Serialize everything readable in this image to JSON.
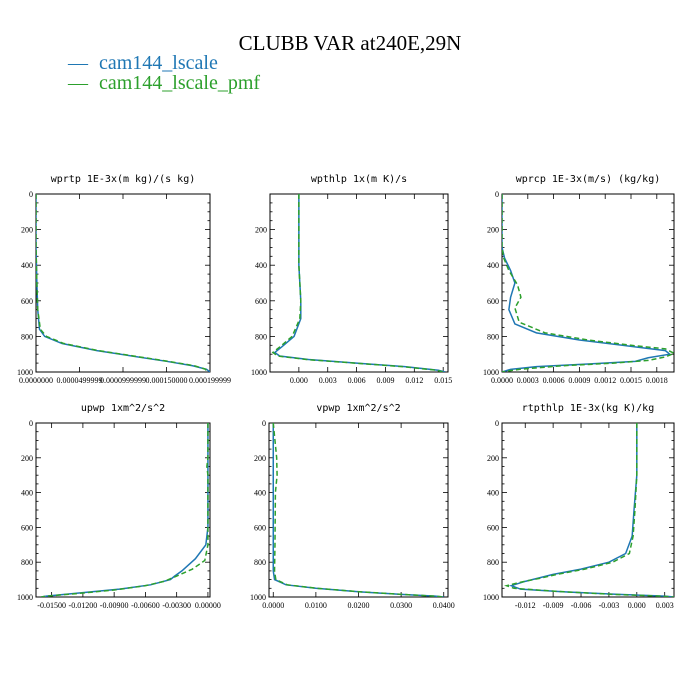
{
  "figure_title": "CLUBB VAR at240E,29N",
  "colors": {
    "cam144_lscale": "#1f77b4",
    "cam144_lscale_pmf": "#2ca02c"
  },
  "legend": [
    {
      "symbol": "—",
      "label": "cam144_lscale",
      "color": "#1f77b4"
    },
    {
      "symbol": "—",
      "label": "cam144_lscale_pmf",
      "color": "#2ca02c"
    }
  ],
  "chart_data": [
    {
      "type": "line",
      "title": "wprtp  1E-3x(m kg)/(s kg)",
      "xlim": [
        0,
        0.0002
      ],
      "ylim": [
        1000,
        0
      ],
      "xticks": [
        0,
        5e-05,
        0.0001,
        0.00015,
        0.0002
      ],
      "xtick_labels": [
        "0.0000000",
        "0.0000499999",
        "0.0000999999",
        "0.000150000",
        "0.000199999"
      ],
      "yticks": [
        0,
        200,
        400,
        600,
        800,
        1000
      ],
      "ytick_labels": [
        "0",
        "200",
        "400",
        "600",
        "800",
        "1000"
      ],
      "series": [
        {
          "name": "cam144_lscale",
          "dash": false,
          "points": [
            [
              0,
              0
            ],
            [
              0,
              300
            ],
            [
              1e-06,
              500
            ],
            [
              2e-06,
              650
            ],
            [
              4e-06,
              760
            ],
            [
              1e-05,
              800
            ],
            [
              3e-05,
              840
            ],
            [
              7e-05,
              880
            ],
            [
              0.00011,
              910
            ],
            [
              0.00015,
              940
            ],
            [
              0.00018,
              965
            ],
            [
              0.000196,
              985
            ],
            [
              0.0002,
              1000
            ]
          ]
        },
        {
          "name": "cam144_lscale_pmf",
          "dash": true,
          "points": [
            [
              0,
              0
            ],
            [
              0,
              300
            ],
            [
              1e-06,
              500
            ],
            [
              2e-06,
              650
            ],
            [
              5e-06,
              760
            ],
            [
              1.2e-05,
              800
            ],
            [
              3.2e-05,
              840
            ],
            [
              7.2e-05,
              880
            ],
            [
              0.000112,
              910
            ],
            [
              0.000152,
              940
            ],
            [
              0.000182,
              965
            ],
            [
              0.000194,
              983
            ],
            [
              0.000198,
              1000
            ]
          ]
        }
      ]
    },
    {
      "type": "line",
      "title": "wpthlp  1x(m K)/s",
      "xlim": [
        -0.003,
        0.0155
      ],
      "ylim": [
        1000,
        0
      ],
      "xticks": [
        0,
        0.003,
        0.006,
        0.009,
        0.012,
        0.015
      ],
      "xtick_labels": [
        "0.000",
        "0.003",
        "0.006",
        "0.009",
        "0.012",
        "0.015"
      ],
      "yticks": [
        200,
        400,
        600,
        800,
        1000
      ],
      "ytick_labels": [
        "200",
        "400",
        "600",
        "800",
        "1000"
      ],
      "series": [
        {
          "name": "cam144_lscale",
          "dash": false,
          "points": [
            [
              0,
              0
            ],
            [
              0,
              200
            ],
            [
              0,
              400
            ],
            [
              0.0001,
              500
            ],
            [
              0.0002,
              600
            ],
            [
              0.0002,
              700
            ],
            [
              -0.0005,
              800
            ],
            [
              -0.0018,
              860
            ],
            [
              -0.0025,
              890
            ],
            [
              -0.002,
              910
            ],
            [
              0.001,
              930
            ],
            [
              0.006,
              950
            ],
            [
              0.011,
              970
            ],
            [
              0.0145,
              990
            ],
            [
              0.0152,
              1000
            ]
          ]
        },
        {
          "name": "cam144_lscale_pmf",
          "dash": true,
          "points": [
            [
              0,
              0
            ],
            [
              0,
              200
            ],
            [
              0,
              400
            ],
            [
              0.0001,
              500
            ],
            [
              0.0002,
              600
            ],
            [
              0.0001,
              700
            ],
            [
              -0.0007,
              800
            ],
            [
              -0.002,
              860
            ],
            [
              -0.0027,
              890
            ],
            [
              -0.0022,
              910
            ],
            [
              0.0008,
              930
            ],
            [
              0.0058,
              950
            ],
            [
              0.0108,
              970
            ],
            [
              0.0143,
              990
            ],
            [
              0.015,
              1000
            ]
          ]
        }
      ]
    },
    {
      "type": "line",
      "title": "wprcp  1E-3x(m/s) (kg/kg)",
      "xlim": [
        0,
        0.002
      ],
      "ylim": [
        1000,
        0
      ],
      "xticks": [
        0,
        0.0003,
        0.0006,
        0.0009,
        0.0012,
        0.0015,
        0.0018
      ],
      "xtick_labels": [
        "0.0000",
        "0.0003",
        "0.0006",
        "0.0009",
        "0.0012",
        "0.0015",
        "0.0018"
      ],
      "yticks": [
        0,
        200,
        400,
        600,
        800,
        1000
      ],
      "ytick_labels": [
        "0",
        "200",
        "400",
        "600",
        "800",
        "1000"
      ],
      "series": [
        {
          "name": "cam144_lscale",
          "dash": false,
          "points": [
            [
              0,
              0
            ],
            [
              0,
              200
            ],
            [
              0,
              300
            ],
            [
              3e-05,
              360
            ],
            [
              0.0001,
              430
            ],
            [
              0.00015,
              500
            ],
            [
              0.0001,
              580
            ],
            [
              8e-05,
              650
            ],
            [
              0.00015,
              730
            ],
            [
              0.0004,
              780
            ],
            [
              0.0009,
              820
            ],
            [
              0.0014,
              850
            ],
            [
              0.0019,
              880
            ],
            [
              0.00195,
              900
            ],
            [
              0.0017,
              920
            ],
            [
              0.00155,
              940
            ],
            [
              0.001,
              955
            ],
            [
              0.0004,
              970
            ],
            [
              0.0001,
              985
            ],
            [
              0,
              1000
            ]
          ]
        },
        {
          "name": "cam144_lscale_pmf",
          "dash": true,
          "points": [
            [
              0,
              0
            ],
            [
              0,
              200
            ],
            [
              0,
              300
            ],
            [
              2e-05,
              360
            ],
            [
              8e-05,
              430
            ],
            [
              0.00018,
              510
            ],
            [
              0.00022,
              580
            ],
            [
              0.00015,
              640
            ],
            [
              0.0002,
              720
            ],
            [
              0.0005,
              780
            ],
            [
              0.001,
              820
            ],
            [
              0.0015,
              850
            ],
            [
              0.0019,
              870
            ],
            [
              0.002,
              895
            ],
            [
              0.0019,
              915
            ],
            [
              0.0017,
              935
            ],
            [
              0.0013,
              950
            ],
            [
              0.0007,
              965
            ],
            [
              0.0002,
              985
            ],
            [
              0,
              1000
            ]
          ]
        }
      ]
    },
    {
      "type": "line",
      "title": "upwp  1xm^2/s^2",
      "xlim": [
        -0.0165,
        0.0002
      ],
      "ylim": [
        1000,
        0
      ],
      "xticks": [
        -0.015,
        -0.012,
        -0.009,
        -0.006,
        -0.003,
        0
      ],
      "xtick_labels": [
        "-0.01500",
        "-0.01200",
        "-0.00900",
        "-0.00600",
        "-0.00300",
        "0.00000"
      ],
      "yticks": [
        0,
        200,
        400,
        600,
        800,
        1000
      ],
      "ytick_labels": [
        "0",
        "200",
        "400",
        "600",
        "800",
        "1000"
      ],
      "series": [
        {
          "name": "cam144_lscale",
          "dash": false,
          "points": [
            [
              0,
              0
            ],
            [
              0,
              200
            ],
            [
              0,
              400
            ],
            [
              0,
              600
            ],
            [
              -0.0002,
              700
            ],
            [
              -0.0012,
              780
            ],
            [
              -0.0025,
              850
            ],
            [
              -0.0032,
              880
            ],
            [
              -0.0036,
              900
            ],
            [
              -0.0055,
              930
            ],
            [
              -0.0085,
              955
            ],
            [
              -0.012,
              975
            ],
            [
              -0.0155,
              995
            ],
            [
              -0.016,
              1000
            ]
          ]
        },
        {
          "name": "cam144_lscale_pmf",
          "dash": true,
          "points": [
            [
              0,
              0
            ],
            [
              0,
              200
            ],
            [
              -0.0001,
              250
            ],
            [
              0,
              300
            ],
            [
              0,
              600
            ],
            [
              0,
              700
            ],
            [
              -0.0003,
              790
            ],
            [
              -0.0015,
              840
            ],
            [
              -0.003,
              880
            ],
            [
              -0.0042,
              910
            ],
            [
              -0.006,
              935
            ],
            [
              -0.009,
              960
            ],
            [
              -0.0125,
              980
            ],
            [
              -0.0155,
              995
            ],
            [
              -0.016,
              1000
            ]
          ]
        }
      ]
    },
    {
      "type": "line",
      "title": "vpwp  1xm^2/s^2",
      "xlim": [
        -0.001,
        0.041
      ],
      "ylim": [
        1000,
        0
      ],
      "xticks": [
        0,
        0.01,
        0.02,
        0.03,
        0.04
      ],
      "xtick_labels": [
        "0.0000",
        "0.0100",
        "0.0200",
        "0.0300",
        "0.0400"
      ],
      "yticks": [
        0,
        200,
        400,
        600,
        800,
        1000
      ],
      "ytick_labels": [
        "0",
        "200",
        "400",
        "600",
        "800",
        "1000"
      ],
      "series": [
        {
          "name": "cam144_lscale",
          "dash": false,
          "points": [
            [
              0,
              0
            ],
            [
              0,
              400
            ],
            [
              0,
              700
            ],
            [
              0,
              850
            ],
            [
              0.0003,
              900
            ],
            [
              0.003,
              930
            ],
            [
              0.01,
              950
            ],
            [
              0.02,
              970
            ],
            [
              0.03,
              985
            ],
            [
              0.038,
              995
            ],
            [
              0.04,
              1000
            ]
          ]
        },
        {
          "name": "cam144_lscale_pmf",
          "dash": true,
          "points": [
            [
              0,
              0
            ],
            [
              0.0008,
              200
            ],
            [
              0.0009,
              300
            ],
            [
              0.0005,
              400
            ],
            [
              0.0004,
              700
            ],
            [
              0.0003,
              850
            ],
            [
              0.0006,
              900
            ],
            [
              0.0033,
              930
            ],
            [
              0.0103,
              950
            ],
            [
              0.0203,
              970
            ],
            [
              0.0303,
              985
            ],
            [
              0.0378,
              995
            ],
            [
              0.04,
              1000
            ]
          ]
        }
      ]
    },
    {
      "type": "line",
      "title": "rtpthlp  1E-3x(kg K)/kg",
      "xlim": [
        -0.0145,
        0.004
      ],
      "ylim": [
        1000,
        0
      ],
      "xticks": [
        -0.012,
        -0.009,
        -0.006,
        -0.003,
        0,
        0.003
      ],
      "xtick_labels": [
        "-0.012",
        "-0.009",
        "-0.006",
        "-0.003",
        "0.000",
        "0.003"
      ],
      "yticks": [
        0,
        200,
        400,
        600,
        800,
        1000
      ],
      "ytick_labels": [
        "0",
        "200",
        "400",
        "600",
        "800",
        "1000"
      ],
      "series": [
        {
          "name": "cam144_lscale",
          "dash": false,
          "points": [
            [
              0,
              0
            ],
            [
              0,
              300
            ],
            [
              -0.0003,
              500
            ],
            [
              -0.0005,
              650
            ],
            [
              -0.0012,
              750
            ],
            [
              -0.003,
              800
            ],
            [
              -0.006,
              840
            ],
            [
              -0.009,
              870
            ],
            [
              -0.0105,
              890
            ],
            [
              -0.012,
              910
            ],
            [
              -0.0135,
              935
            ],
            [
              -0.0125,
              955
            ],
            [
              -0.008,
              970
            ],
            [
              -0.002,
              985
            ],
            [
              0.003,
              995
            ],
            [
              0.004,
              1000
            ]
          ]
        },
        {
          "name": "cam144_lscale_pmf",
          "dash": true,
          "points": [
            [
              0,
              0
            ],
            [
              0,
              300
            ],
            [
              -0.0002,
              500
            ],
            [
              -0.0004,
              650
            ],
            [
              -0.0008,
              750
            ],
            [
              -0.0026,
              800
            ],
            [
              -0.0056,
              840
            ],
            [
              -0.0086,
              870
            ],
            [
              -0.0102,
              890
            ],
            [
              -0.0125,
              915
            ],
            [
              -0.014,
              935
            ],
            [
              -0.0132,
              950
            ],
            [
              -0.0085,
              968
            ],
            [
              -0.0025,
              985
            ],
            [
              0.0025,
              995
            ],
            [
              0.004,
              1000
            ]
          ]
        }
      ]
    }
  ]
}
